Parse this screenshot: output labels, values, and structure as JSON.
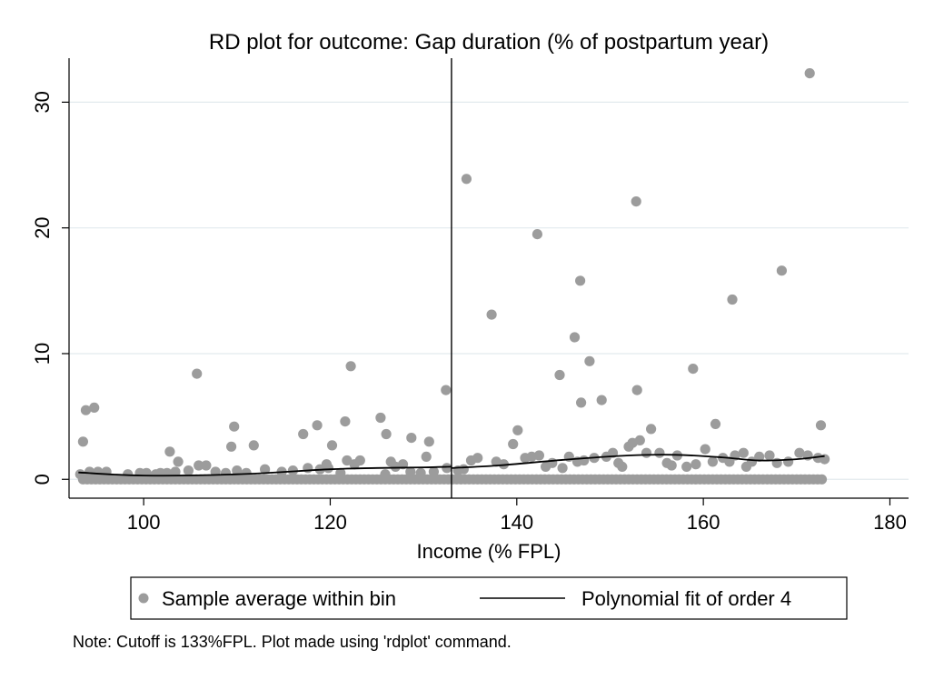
{
  "chart_data": {
    "type": "scatter",
    "title": "RD plot for outcome: Gap duration (% of postpartum year)",
    "xlabel": "Income (% FPL)",
    "ylabel": "",
    "xlim": [
      92,
      182
    ],
    "ylim": [
      -1.5,
      33.5
    ],
    "xticks": [
      100,
      120,
      140,
      160,
      180
    ],
    "yticks": [
      0,
      10,
      20,
      30
    ],
    "grid": "horizontal",
    "cutoff": 133,
    "legend_position": "bottom",
    "note": "Note: Cutoff is 133%FPL. Plot made using 'rdplot' command.",
    "colors": {
      "points": "#9c9c9c",
      "fit": "#000000",
      "grid": "#e2eaee",
      "cutoff": "#000000"
    },
    "series": [
      {
        "name": "Sample average within bin",
        "kind": "points",
        "zero_band": {
          "from": 93.5,
          "to": 173,
          "step": 0.45,
          "y": 0
        },
        "points": [
          [
            93.5,
            3.0
          ],
          [
            93.8,
            5.5
          ],
          [
            94.7,
            5.7
          ],
          [
            93.2,
            0.4
          ],
          [
            94.2,
            0.6
          ],
          [
            95.1,
            0.6
          ],
          [
            96.0,
            0.6
          ],
          [
            98.3,
            0.4
          ],
          [
            99.6,
            0.5
          ],
          [
            100.3,
            0.5
          ],
          [
            101.3,
            0.4
          ],
          [
            101.8,
            0.5
          ],
          [
            102.5,
            0.5
          ],
          [
            102.8,
            2.2
          ],
          [
            103.4,
            0.6
          ],
          [
            103.7,
            1.4
          ],
          [
            104.8,
            0.7
          ],
          [
            105.7,
            8.4
          ],
          [
            105.9,
            1.1
          ],
          [
            106.7,
            1.1
          ],
          [
            107.7,
            0.6
          ],
          [
            108.8,
            0.5
          ],
          [
            109.4,
            2.6
          ],
          [
            109.7,
            4.2
          ],
          [
            110.0,
            0.7
          ],
          [
            111.0,
            0.5
          ],
          [
            111.8,
            2.7
          ],
          [
            113.0,
            0.8
          ],
          [
            114.8,
            0.6
          ],
          [
            116.0,
            0.7
          ],
          [
            117.1,
            3.6
          ],
          [
            117.6,
            0.9
          ],
          [
            118.6,
            4.3
          ],
          [
            118.9,
            0.8
          ],
          [
            119.6,
            1.2
          ],
          [
            119.8,
            0.9
          ],
          [
            120.2,
            2.7
          ],
          [
            121.1,
            0.5
          ],
          [
            121.6,
            4.6
          ],
          [
            121.8,
            1.5
          ],
          [
            122.2,
            9.0
          ],
          [
            122.6,
            1.2
          ],
          [
            123.2,
            1.5
          ],
          [
            125.4,
            4.9
          ],
          [
            126.0,
            3.6
          ],
          [
            125.9,
            0.4
          ],
          [
            126.5,
            1.4
          ],
          [
            127.0,
            1.0
          ],
          [
            127.8,
            1.2
          ],
          [
            128.6,
            0.6
          ],
          [
            128.7,
            3.3
          ],
          [
            129.7,
            0.5
          ],
          [
            130.3,
            1.8
          ],
          [
            130.6,
            3.0
          ],
          [
            132.4,
            7.1
          ],
          [
            132.5,
            0.9
          ],
          [
            131.1,
            0.6
          ],
          [
            133.7,
            0.7
          ],
          [
            134.3,
            0.8
          ],
          [
            134.6,
            23.9
          ],
          [
            135.1,
            1.5
          ],
          [
            135.8,
            1.7
          ],
          [
            137.3,
            13.1
          ],
          [
            137.8,
            1.4
          ],
          [
            138.6,
            1.2
          ],
          [
            139.6,
            2.8
          ],
          [
            140.1,
            3.9
          ],
          [
            140.9,
            1.7
          ],
          [
            141.6,
            1.8
          ],
          [
            142.2,
            19.5
          ],
          [
            142.4,
            1.9
          ],
          [
            143.1,
            1.0
          ],
          [
            143.8,
            1.3
          ],
          [
            144.6,
            8.3
          ],
          [
            144.9,
            0.9
          ],
          [
            145.6,
            1.8
          ],
          [
            146.2,
            11.3
          ],
          [
            146.5,
            1.4
          ],
          [
            146.8,
            15.8
          ],
          [
            146.9,
            6.1
          ],
          [
            147.2,
            1.5
          ],
          [
            147.8,
            9.4
          ],
          [
            148.3,
            1.7
          ],
          [
            149.1,
            6.3
          ],
          [
            149.6,
            1.8
          ],
          [
            150.3,
            2.1
          ],
          [
            150.9,
            1.3
          ],
          [
            151.3,
            1.0
          ],
          [
            152.0,
            2.6
          ],
          [
            152.4,
            2.9
          ],
          [
            152.8,
            22.1
          ],
          [
            152.9,
            7.1
          ],
          [
            153.2,
            3.1
          ],
          [
            153.9,
            2.1
          ],
          [
            154.4,
            4.0
          ],
          [
            155.3,
            2.1
          ],
          [
            156.1,
            1.3
          ],
          [
            156.6,
            1.1
          ],
          [
            157.2,
            1.9
          ],
          [
            158.2,
            1.0
          ],
          [
            158.9,
            8.8
          ],
          [
            159.2,
            1.2
          ],
          [
            160.2,
            2.4
          ],
          [
            161.0,
            1.4
          ],
          [
            161.3,
            4.4
          ],
          [
            162.1,
            1.7
          ],
          [
            162.8,
            1.4
          ],
          [
            163.1,
            14.3
          ],
          [
            163.4,
            1.9
          ],
          [
            164.3,
            2.1
          ],
          [
            164.6,
            1.0
          ],
          [
            165.2,
            1.4
          ],
          [
            166.0,
            1.8
          ],
          [
            167.1,
            1.9
          ],
          [
            167.9,
            1.3
          ],
          [
            168.4,
            16.6
          ],
          [
            169.1,
            1.4
          ],
          [
            170.3,
            2.1
          ],
          [
            171.2,
            1.9
          ],
          [
            171.4,
            32.3
          ],
          [
            172.3,
            1.7
          ],
          [
            172.6,
            4.3
          ],
          [
            173.0,
            1.6
          ]
        ]
      },
      {
        "name": "Polynomial fit of order 4",
        "kind": "line",
        "segments": [
          {
            "x": [
              93,
              100,
              110,
              120,
              125,
              130,
              133
            ],
            "y": [
              0.55,
              0.3,
              0.4,
              0.8,
              0.9,
              0.95,
              1.0
            ]
          },
          {
            "x": [
              133,
              138,
              145,
              152,
              157,
              162,
              166,
              170,
              173
            ],
            "y": [
              0.9,
              1.1,
              1.55,
              1.9,
              1.95,
              1.75,
              1.5,
              1.6,
              1.85
            ]
          }
        ]
      }
    ]
  }
}
